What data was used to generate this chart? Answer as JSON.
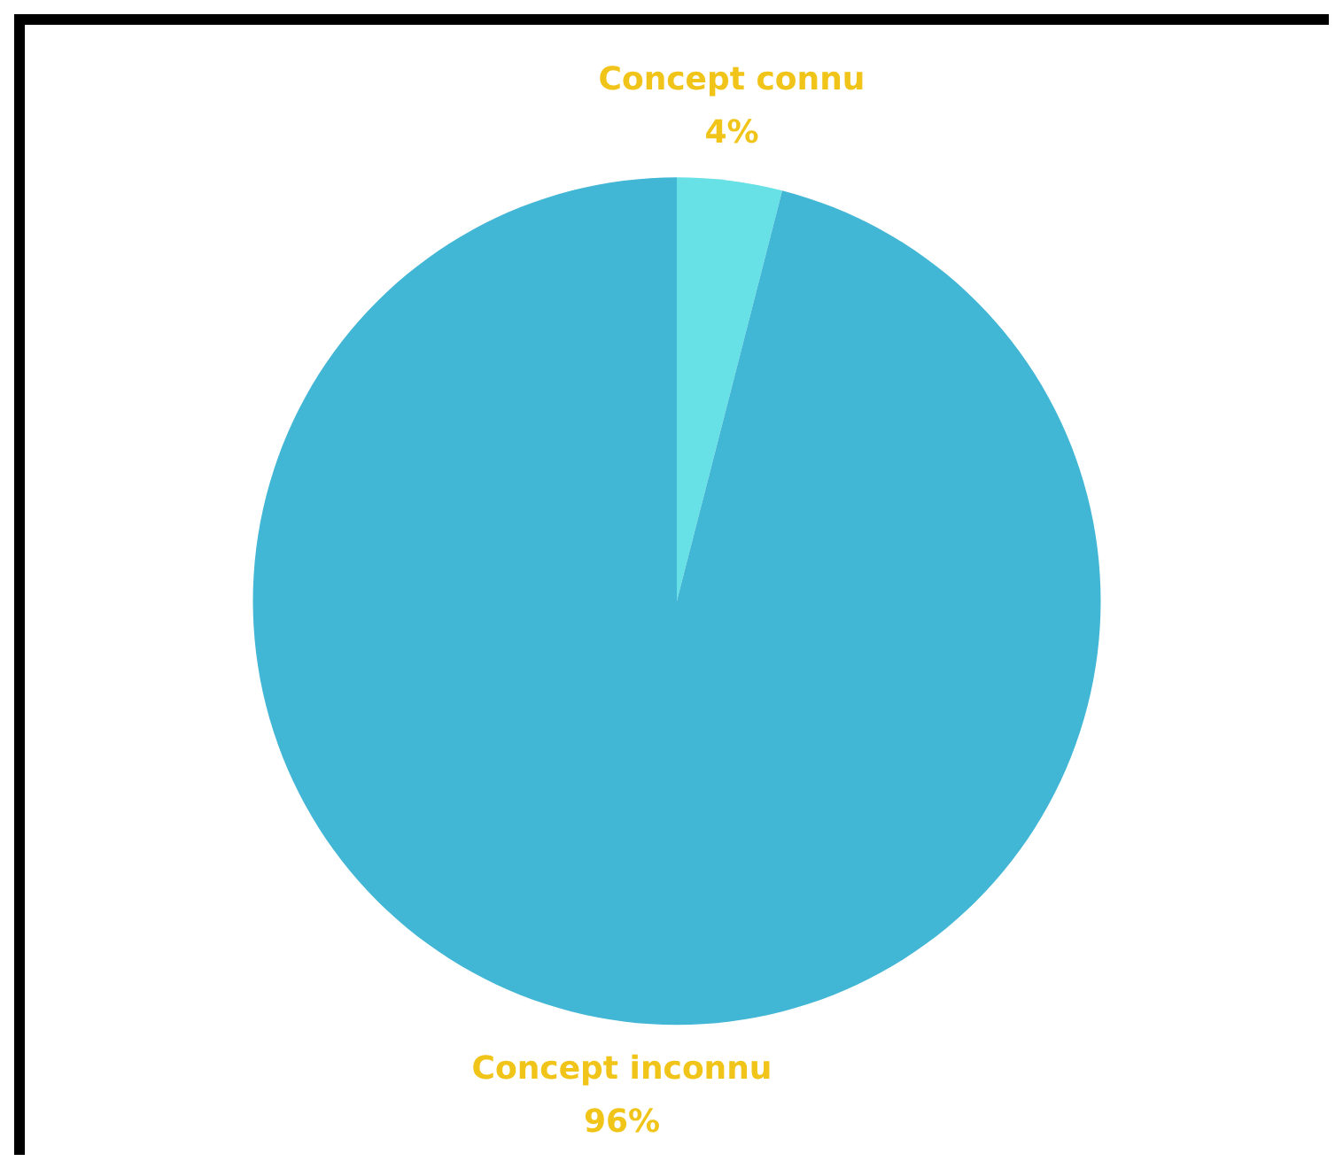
{
  "chart_data": {
    "type": "pie",
    "categories": [
      "Concept connu",
      "Concept inconnu"
    ],
    "values": [
      4,
      96
    ],
    "colors": [
      "#67e0e6",
      "#42b6d5"
    ],
    "value_labels": [
      "4%",
      "96%"
    ],
    "legend": false
  }
}
